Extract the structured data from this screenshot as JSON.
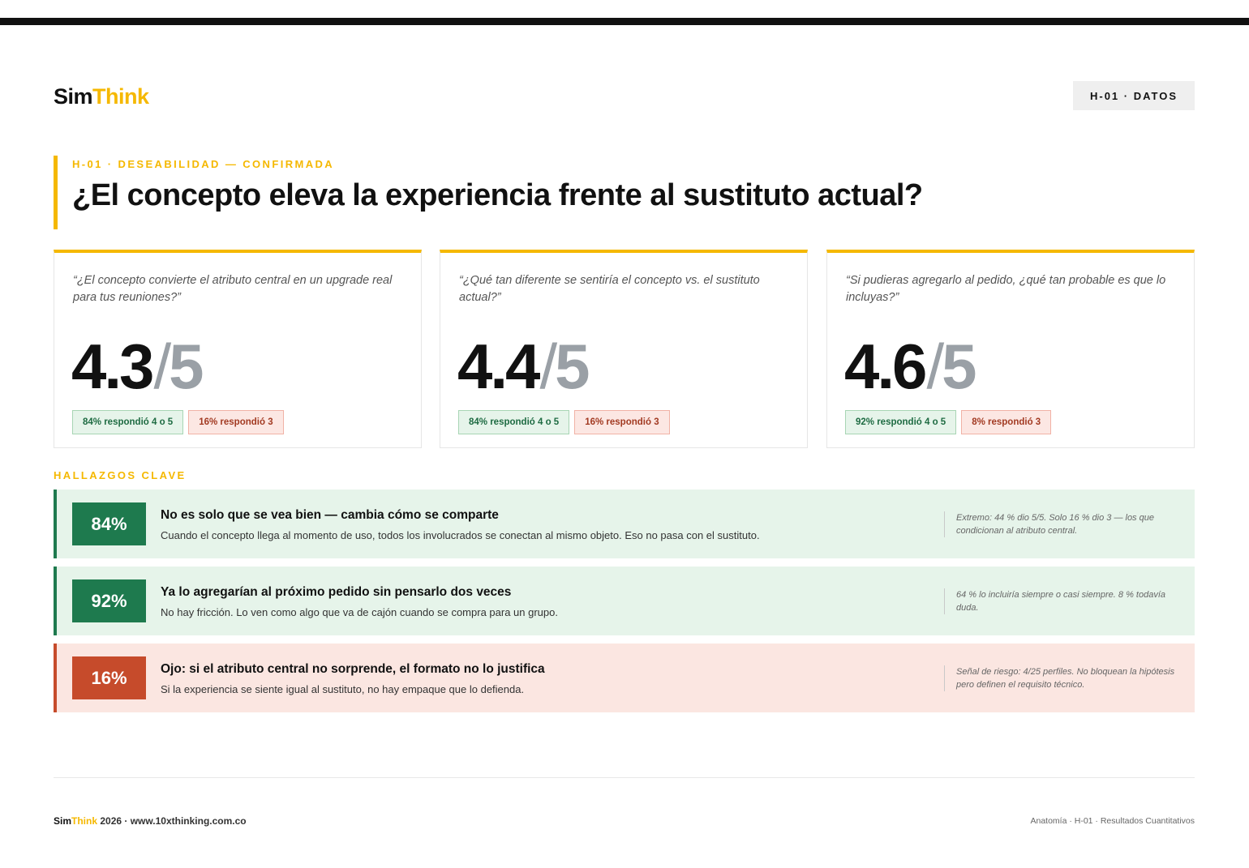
{
  "header": {
    "logo_sim": "Sim",
    "logo_think": "Think",
    "tag": "H-01 · DATOS"
  },
  "heading": {
    "eyebrow": "H-01 · DESEABILIDAD — CONFIRMADA",
    "title": "¿El concepto eleva la experiencia frente al sustituto actual?"
  },
  "cards": [
    {
      "question": "“¿El concepto convierte el atributo central en un upgrade real para tus reuniones?”",
      "score": "4.3",
      "slash": "/",
      "max": "5",
      "positive_pill": "84% respondió 4 o 5",
      "negative_pill": "16% respondió 3"
    },
    {
      "question": "“¿Qué tan diferente se sentiría el concepto vs. el sustituto actual?”",
      "score": "4.4",
      "slash": "/",
      "max": "5",
      "positive_pill": "84% respondió 4 o 5",
      "negative_pill": "16% respondió 3"
    },
    {
      "question": "“Si pudieras agregarlo al pedido, ¿qué tan probable es que lo incluyas?”",
      "score": "4.6",
      "slash": "/",
      "max": "5",
      "positive_pill": "92% respondió 4 o 5",
      "negative_pill": "8% respondió 3"
    }
  ],
  "findings": {
    "label": "HALLAZGOS CLAVE",
    "items": [
      {
        "badge": "84%",
        "title": "No es solo que se vea bien — cambia cómo se comparte",
        "description": "Cuando el concepto llega al momento de uso, todos los involucrados se conectan al mismo objeto. Eso no pasa con el sustituto.",
        "note": "Extremo: 44 % dio 5/5. Solo 16 % dio 3 — los que condicionan al atributo central."
      },
      {
        "badge": "92%",
        "title": "Ya lo agregarían al próximo pedido sin pensarlo dos veces",
        "description": "No hay fricción. Lo ven como algo que va de cajón cuando se compra para un grupo.",
        "note": "64 % lo incluiría siempre o casi siempre. 8 % todavía duda."
      },
      {
        "badge": "16%",
        "title": "Ojo: si el atributo central no sorprende, el formato no lo justifica",
        "description": "Si la experiencia se siente igual al sustituto, no hay empaque que lo defienda.",
        "note": "Señal de riesgo: 4/25 perfiles. No bloquean la hipótesis pero definen el requisito técnico."
      }
    ]
  },
  "footer": {
    "brand_sim": "Sim",
    "brand_think": "Think",
    "brand_rest": " 2026 · www.10xthinking.com.co",
    "right": "Anatomía · H-01 · Resultados Cuantitativos"
  },
  "colors": {
    "accent": "#f5b800",
    "positive": "#1e7a4e",
    "risk": "#c64b2b"
  }
}
